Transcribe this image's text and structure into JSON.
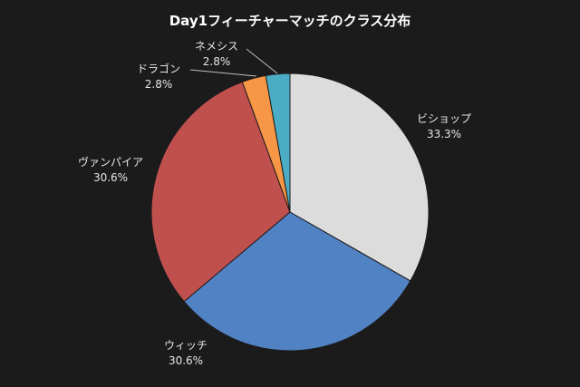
{
  "chart_data": {
    "type": "pie",
    "title": "Day1フィーチャーマッチのクラス分布",
    "slices": [
      {
        "label": "ビショップ",
        "value": 33.3,
        "pct_text": "33.3%",
        "color": "#dcdcdc"
      },
      {
        "label": "ウィッチ",
        "value": 30.6,
        "pct_text": "30.6%",
        "color": "#5182c3"
      },
      {
        "label": "ヴァンパイア",
        "value": 30.6,
        "pct_text": "30.6%",
        "color": "#c0504d"
      },
      {
        "label": "ドラゴン",
        "value": 2.8,
        "pct_text": "2.8%",
        "color": "#f79646"
      },
      {
        "label": "ネメシス",
        "value": 2.8,
        "pct_text": "2.8%",
        "color": "#4bacc6"
      }
    ]
  }
}
